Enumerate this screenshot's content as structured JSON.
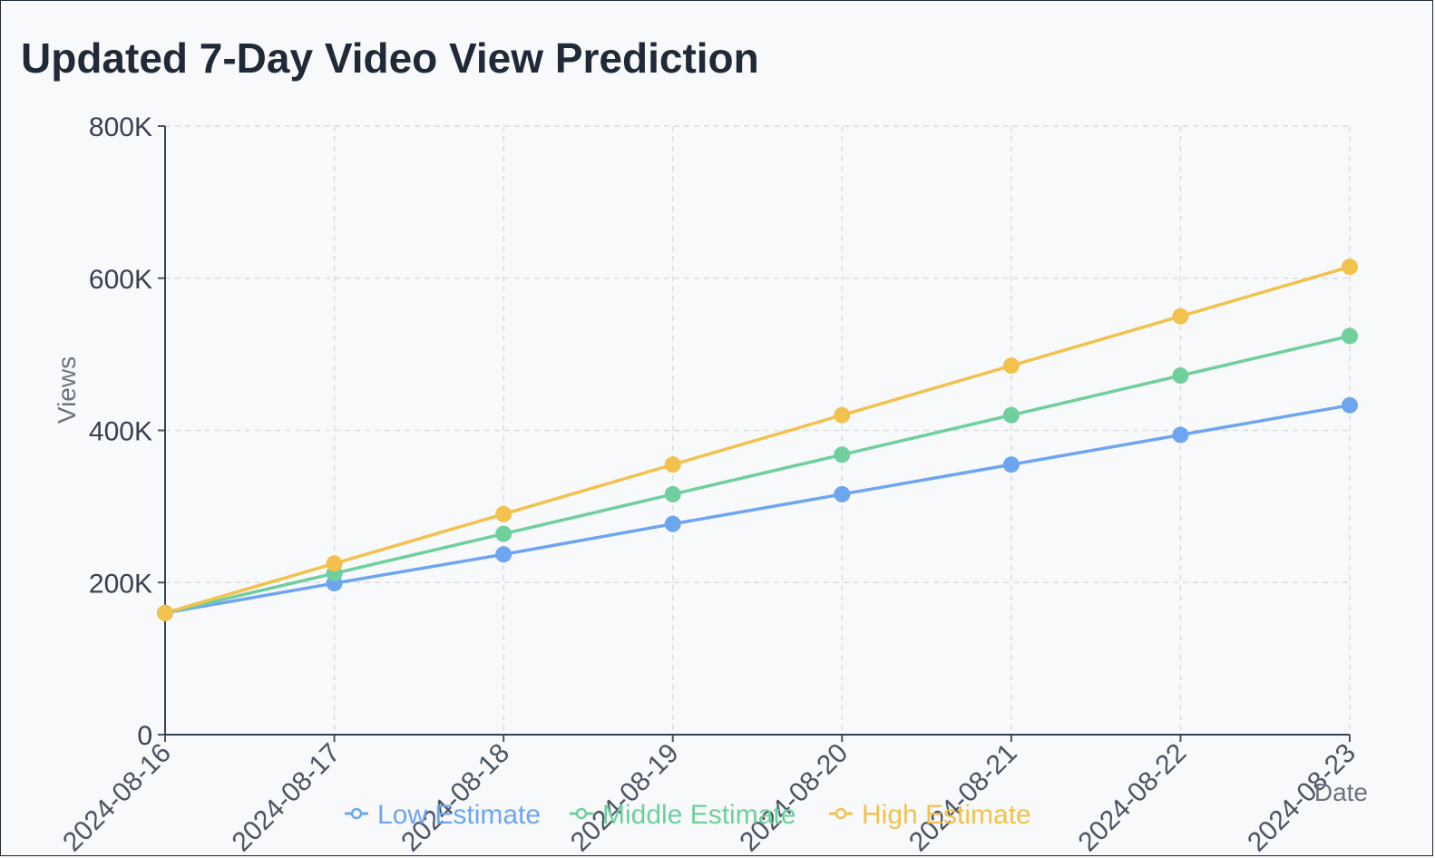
{
  "title": "Updated 7-Day Video View Prediction",
  "chart_data": {
    "type": "line",
    "title": "Updated 7-Day Video View Prediction",
    "xlabel": "Date",
    "ylabel": "Views",
    "x": [
      "2024-08-16",
      "2024-08-17",
      "2024-08-18",
      "2024-08-19",
      "2024-08-20",
      "2024-08-21",
      "2024-08-22",
      "2024-08-23"
    ],
    "x_tick_labels": [
      "2024-08-16",
      "2024-08-17",
      "2024-08-18",
      "2024-08-19",
      "2024-08-20",
      "2024-08-21",
      "2024-08-22",
      "2024-08-23"
    ],
    "ylim": [
      0,
      800000
    ],
    "y_ticks": [
      0,
      200000,
      400000,
      600000,
      800000
    ],
    "y_tick_labels": [
      "0",
      "200K",
      "400K",
      "600K",
      "800K"
    ],
    "grid": true,
    "legend_position": "bottom",
    "series": [
      {
        "name": "Low Estimate",
        "color": "#6ea5f0",
        "values": [
          160000,
          199000,
          237000,
          277000,
          316000,
          355000,
          394000,
          433000
        ]
      },
      {
        "name": "Middle Estimate",
        "color": "#6fcf9d",
        "values": [
          160000,
          212000,
          264000,
          316000,
          368000,
          420000,
          472000,
          524000
        ]
      },
      {
        "name": "High Estimate",
        "color": "#f2c14e",
        "values": [
          160000,
          225000,
          290000,
          355000,
          420000,
          485000,
          550000,
          615000
        ]
      }
    ]
  }
}
